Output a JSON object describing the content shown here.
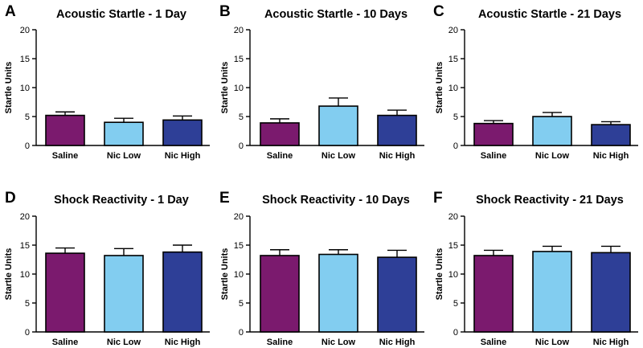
{
  "chart_data": [
    {
      "panel": "A",
      "type": "bar",
      "title": "Acoustic Startle - 1 Day",
      "ylabel": "Startle Units",
      "ylim": [
        0,
        20
      ],
      "yticks": [
        0,
        5,
        10,
        15,
        20
      ],
      "categories": [
        "Saline",
        "Nic Low",
        "Nic High"
      ],
      "values": [
        5.2,
        4.0,
        4.4
      ],
      "errors": [
        0.6,
        0.7,
        0.7
      ],
      "colors": [
        "#7b1a6e",
        "#82cdf0",
        "#2e3f97"
      ]
    },
    {
      "panel": "B",
      "type": "bar",
      "title": "Acoustic Startle - 10 Days",
      "ylabel": "Startle Units",
      "ylim": [
        0,
        20
      ],
      "yticks": [
        0,
        5,
        10,
        15,
        20
      ],
      "categories": [
        "Saline",
        "Nic Low",
        "Nic High"
      ],
      "values": [
        3.9,
        6.8,
        5.2
      ],
      "errors": [
        0.7,
        1.4,
        0.9
      ],
      "colors": [
        "#7b1a6e",
        "#82cdf0",
        "#2e3f97"
      ]
    },
    {
      "panel": "C",
      "type": "bar",
      "title": "Acoustic Startle - 21 Days",
      "ylabel": "Startle Units",
      "ylim": [
        0,
        20
      ],
      "yticks": [
        0,
        5,
        10,
        15,
        20
      ],
      "categories": [
        "Saline",
        "Nic Low",
        "Nic High"
      ],
      "values": [
        3.8,
        5.0,
        3.6
      ],
      "errors": [
        0.5,
        0.7,
        0.5
      ],
      "colors": [
        "#7b1a6e",
        "#82cdf0",
        "#2e3f97"
      ]
    },
    {
      "panel": "D",
      "type": "bar",
      "title": "Shock Reactivity - 1 Day",
      "ylabel": "Startle Units",
      "ylim": [
        0,
        20
      ],
      "yticks": [
        0,
        5,
        10,
        15,
        20
      ],
      "categories": [
        "Saline",
        "Nic Low",
        "Nic High"
      ],
      "values": [
        13.6,
        13.2,
        13.8
      ],
      "errors": [
        0.9,
        1.2,
        1.2
      ],
      "colors": [
        "#7b1a6e",
        "#82cdf0",
        "#2e3f97"
      ]
    },
    {
      "panel": "E",
      "type": "bar",
      "title": "Shock Reactivity - 10 Days",
      "ylabel": "Startle Units",
      "ylim": [
        0,
        20
      ],
      "yticks": [
        0,
        5,
        10,
        15,
        20
      ],
      "categories": [
        "Saline",
        "Nic Low",
        "Nic High"
      ],
      "values": [
        13.2,
        13.4,
        12.9
      ],
      "errors": [
        1.0,
        0.8,
        1.2
      ],
      "colors": [
        "#7b1a6e",
        "#82cdf0",
        "#2e3f97"
      ]
    },
    {
      "panel": "F",
      "type": "bar",
      "title": "Shock Reactivity - 21 Days",
      "ylabel": "Startle Units",
      "ylim": [
        0,
        20
      ],
      "yticks": [
        0,
        5,
        10,
        15,
        20
      ],
      "categories": [
        "Saline",
        "Nic Low",
        "Nic High"
      ],
      "values": [
        13.2,
        13.9,
        13.7
      ],
      "errors": [
        0.9,
        0.9,
        1.1
      ],
      "colors": [
        "#7b1a6e",
        "#82cdf0",
        "#2e3f97"
      ]
    }
  ]
}
